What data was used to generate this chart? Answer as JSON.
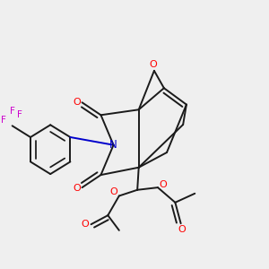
{
  "bg_color": "#efefef",
  "bond_color": "#1a1a1a",
  "oxygen_color": "#ff0000",
  "nitrogen_color": "#0000cc",
  "fluorine_color": "#cc00cc",
  "lw": 1.4,
  "dbo": 0.014,
  "xlim": [
    0.03,
    0.97
  ],
  "ylim": [
    0.08,
    0.97
  ]
}
